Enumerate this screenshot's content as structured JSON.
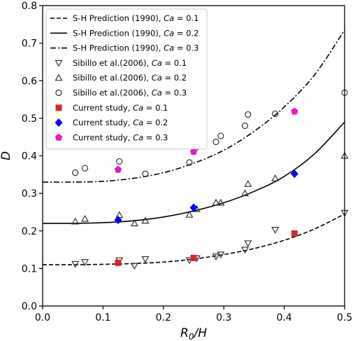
{
  "chart_data": {
    "type": "scatter",
    "xlabel": "R₀/H",
    "ylabel": "D",
    "xlim": [
      0.0,
      0.5
    ],
    "ylim": [
      0.0,
      0.8
    ],
    "xticks": [
      "0.0",
      "0.1",
      "0.2",
      "0.3",
      "0.4",
      "0.5"
    ],
    "yticks": [
      "0.0",
      "0.1",
      "0.2",
      "0.3",
      "0.4",
      "0.5",
      "0.6",
      "0.7",
      "0.8"
    ],
    "grid": false,
    "legend_position": "top-left",
    "series": [
      {
        "name": "S-H Prediction (1990), Ca = 0.1",
        "kind": "line",
        "linestyle": "dashed",
        "color": "#000000",
        "x": [
          0.0,
          0.05,
          0.1,
          0.15,
          0.2,
          0.25,
          0.3,
          0.35,
          0.4,
          0.45,
          0.5
        ],
        "y": [
          0.11,
          0.11,
          0.111,
          0.113,
          0.117,
          0.125,
          0.137,
          0.153,
          0.175,
          0.205,
          0.245
        ]
      },
      {
        "name": "S-H Prediction (1990), Ca = 0.2",
        "kind": "line",
        "linestyle": "solid",
        "color": "#000000",
        "x": [
          0.0,
          0.05,
          0.1,
          0.15,
          0.2,
          0.25,
          0.3,
          0.35,
          0.4,
          0.45,
          0.5
        ],
        "y": [
          0.22,
          0.22,
          0.222,
          0.227,
          0.237,
          0.253,
          0.275,
          0.305,
          0.345,
          0.405,
          0.49
        ]
      },
      {
        "name": "S-H Prediction (1990), Ca = 0.3",
        "kind": "line",
        "linestyle": "dashdot",
        "color": "#000000",
        "x": [
          0.0,
          0.05,
          0.1,
          0.15,
          0.2,
          0.25,
          0.3,
          0.35,
          0.4,
          0.45,
          0.5
        ],
        "y": [
          0.33,
          0.33,
          0.332,
          0.34,
          0.355,
          0.38,
          0.415,
          0.465,
          0.53,
          0.615,
          0.735
        ]
      },
      {
        "name": "Sibillo et al.(2006), Ca = 0.1",
        "kind": "scatter",
        "marker": "triangle-down",
        "color": "#333333",
        "x": [
          0.054,
          0.07,
          0.127,
          0.152,
          0.17,
          0.243,
          0.255,
          0.287,
          0.295,
          0.335,
          0.34,
          0.385,
          0.5
        ],
        "y": [
          0.112,
          0.117,
          0.122,
          0.107,
          0.125,
          0.122,
          0.127,
          0.132,
          0.137,
          0.15,
          0.167,
          0.203,
          0.248
        ]
      },
      {
        "name": "Sibillo et al.(2006), Ca = 0.2",
        "kind": "scatter",
        "marker": "triangle-up",
        "color": "#333333",
        "x": [
          0.054,
          0.07,
          0.127,
          0.152,
          0.17,
          0.243,
          0.255,
          0.287,
          0.295,
          0.335,
          0.34,
          0.385,
          0.5
        ],
        "y": [
          0.225,
          0.232,
          0.242,
          0.22,
          0.227,
          0.243,
          0.258,
          0.275,
          0.275,
          0.3,
          0.325,
          0.34,
          0.4
        ]
      },
      {
        "name": "Sibillo et al.(2006), Ca = 0.3",
        "kind": "scatter",
        "marker": "circle-open",
        "color": "#333333",
        "x": [
          0.054,
          0.07,
          0.127,
          0.17,
          0.243,
          0.255,
          0.287,
          0.295,
          0.335,
          0.34,
          0.385,
          0.5
        ],
        "y": [
          0.355,
          0.367,
          0.385,
          0.352,
          0.382,
          0.423,
          0.437,
          0.453,
          0.48,
          0.51,
          0.512,
          0.568
        ]
      },
      {
        "name": "Current study, Ca = 0.1",
        "kind": "scatter",
        "marker": "square",
        "color": "#d62728",
        "x": [
          0.125,
          0.25,
          0.417
        ],
        "y": [
          0.115,
          0.128,
          0.193
        ]
      },
      {
        "name": "Current study, Ca = 0.2",
        "kind": "scatter",
        "marker": "diamond",
        "color": "#0000ff",
        "x": [
          0.125,
          0.25,
          0.417
        ],
        "y": [
          0.229,
          0.262,
          0.352
        ]
      },
      {
        "name": "Current study, Ca = 0.3",
        "kind": "scatter",
        "marker": "pentagon",
        "color": "#e619c8",
        "x": [
          0.125,
          0.25,
          0.417
        ],
        "y": [
          0.363,
          0.411,
          0.518
        ]
      }
    ],
    "legend": [
      {
        "main": "S-H Prediction (1990), ",
        "ital": "Ca",
        "eq": " = 0.1"
      },
      {
        "main": "S-H Prediction (1990), ",
        "ital": "Ca",
        "eq": " = 0.2"
      },
      {
        "main": "S-H Prediction (1990), ",
        "ital": "Ca",
        "eq": " = 0.3"
      },
      {
        "main": "Sibillo et al.(2006), ",
        "ital": "Ca",
        "eq": " = 0.1"
      },
      {
        "main": "Sibillo et al.(2006), ",
        "ital": "Ca",
        "eq": " = 0.2"
      },
      {
        "main": "Sibillo et al.(2006), ",
        "ital": "Ca",
        "eq": " = 0.3"
      },
      {
        "main": "Current study, ",
        "ital": "Ca",
        "eq": " = 0.1"
      },
      {
        "main": "Current study, ",
        "ital": "Ca",
        "eq": " = 0.2"
      },
      {
        "main": "Current study, ",
        "ital": "Ca",
        "eq": " = 0.3"
      }
    ]
  }
}
